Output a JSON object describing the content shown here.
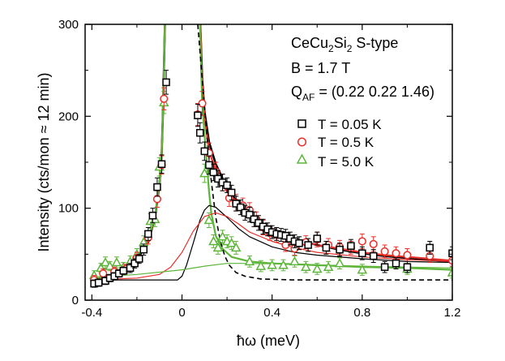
{
  "chart_data": {
    "type": "scatter",
    "xlabel": "ħω (meV)",
    "ylabel": "Intensity (cts/mon ≈ 12 min)",
    "xlim": [
      -0.43,
      1.2
    ],
    "ylim": [
      0,
      300
    ],
    "xticks": [
      -0.4,
      0,
      0.4,
      0.8,
      1.2
    ],
    "xtick_labels": [
      "-0.4",
      "0",
      "0.4",
      "0.8",
      "1.2"
    ],
    "yticks": [
      0,
      100,
      200,
      300
    ],
    "ytick_labels": [
      "0",
      "100",
      "200",
      "300"
    ],
    "annotation": {
      "line1_main": "CeCu",
      "line1_sub1": "2",
      "line1_mid": "Si",
      "line1_sub2": "2",
      "line1_tail": " S-type",
      "line2": "B = 1.7 T",
      "line3_main": "Q",
      "line3_sub": "AF",
      "line3_tail": " = (0.22 0.22 1.46)"
    },
    "series": [
      {
        "name": "T = 0.05 K",
        "marker": "square",
        "color": "#000000",
        "points": [
          [
            -0.39,
            18,
            4
          ],
          [
            -0.37,
            19,
            4
          ],
          [
            -0.34,
            21,
            4
          ],
          [
            -0.32,
            24,
            4
          ],
          [
            -0.3,
            26,
            4
          ],
          [
            -0.28,
            29,
            4
          ],
          [
            -0.26,
            32,
            4
          ],
          [
            -0.23,
            35,
            5
          ],
          [
            -0.21,
            40,
            5
          ],
          [
            -0.19,
            45,
            5
          ],
          [
            -0.17,
            55,
            6
          ],
          [
            -0.15,
            72,
            7
          ],
          [
            -0.13,
            92,
            8
          ],
          [
            -0.11,
            123,
            10
          ],
          [
            -0.09,
            148,
            10
          ],
          [
            -0.07,
            237,
            13
          ],
          [
            0.07,
            201,
            12
          ],
          [
            0.08,
            182,
            11
          ],
          [
            0.1,
            162,
            10
          ],
          [
            0.12,
            147,
            10
          ],
          [
            0.14,
            139,
            9
          ],
          [
            0.16,
            132,
            9
          ],
          [
            0.18,
            128,
            9
          ],
          [
            0.2,
            125,
            8
          ],
          [
            0.22,
            117,
            8
          ],
          [
            0.24,
            105,
            8
          ],
          [
            0.26,
            101,
            8
          ],
          [
            0.28,
            95,
            8
          ],
          [
            0.3,
            93,
            8
          ],
          [
            0.32,
            88,
            8
          ],
          [
            0.34,
            84,
            8
          ],
          [
            0.36,
            80,
            8
          ],
          [
            0.38,
            77,
            7
          ],
          [
            0.4,
            74,
            7
          ],
          [
            0.42,
            72,
            7
          ],
          [
            0.44,
            71,
            7
          ],
          [
            0.46,
            70,
            7
          ],
          [
            0.48,
            67,
            7
          ],
          [
            0.5,
            64,
            7
          ],
          [
            0.52,
            62,
            7
          ],
          [
            0.56,
            60,
            7
          ],
          [
            0.6,
            67,
            7
          ],
          [
            0.64,
            57,
            7
          ],
          [
            0.7,
            55,
            7
          ],
          [
            0.75,
            59,
            7
          ],
          [
            0.8,
            51,
            7
          ],
          [
            0.85,
            48,
            7
          ],
          [
            0.9,
            36,
            6
          ],
          [
            0.95,
            40,
            6
          ],
          [
            1.0,
            36,
            6
          ],
          [
            1.1,
            57,
            7
          ],
          [
            1.2,
            51,
            7
          ]
        ]
      },
      {
        "name": "T = 0.5 K",
        "marker": "circle",
        "color": "#e8302a",
        "points": [
          [
            -0.39,
            22,
            5
          ],
          [
            -0.35,
            29,
            5
          ],
          [
            -0.3,
            31,
            5
          ],
          [
            -0.25,
            34,
            5
          ],
          [
            -0.2,
            46,
            6
          ],
          [
            -0.15,
            68,
            7
          ],
          [
            -0.11,
            110,
            9
          ],
          [
            -0.09,
            147,
            10
          ],
          [
            -0.08,
            219,
            12
          ],
          [
            0.07,
            202,
            12
          ],
          [
            0.09,
            214,
            13
          ],
          [
            0.12,
            160,
            11
          ],
          [
            0.15,
            140,
            10
          ],
          [
            0.18,
            128,
            9
          ],
          [
            0.21,
            111,
            9
          ],
          [
            0.24,
            106,
            9
          ],
          [
            0.27,
            103,
            8
          ],
          [
            0.3,
            98,
            8
          ],
          [
            0.33,
            88,
            8
          ],
          [
            0.36,
            79,
            8
          ],
          [
            0.39,
            73,
            8
          ],
          [
            0.42,
            71,
            8
          ],
          [
            0.46,
            60,
            7
          ],
          [
            0.5,
            56,
            7
          ],
          [
            0.55,
            63,
            7
          ],
          [
            0.6,
            66,
            8
          ],
          [
            0.65,
            60,
            7
          ],
          [
            0.7,
            58,
            7
          ],
          [
            0.75,
            57,
            7
          ],
          [
            0.8,
            64,
            8
          ],
          [
            0.85,
            61,
            8
          ],
          [
            0.9,
            53,
            7
          ],
          [
            0.95,
            51,
            7
          ],
          [
            1.0,
            49,
            7
          ],
          [
            1.1,
            48,
            7
          ],
          [
            1.2,
            43,
            6
          ]
        ]
      },
      {
        "name": "T = 5.0 K",
        "marker": "triangle",
        "color": "#5db53a",
        "points": [
          [
            -0.39,
            27,
            5
          ],
          [
            -0.36,
            35,
            5
          ],
          [
            -0.34,
            41,
            6
          ],
          [
            -0.32,
            37,
            5
          ],
          [
            -0.29,
            41,
            6
          ],
          [
            -0.26,
            36,
            5
          ],
          [
            -0.23,
            42,
            6
          ],
          [
            -0.2,
            50,
            6
          ],
          [
            -0.17,
            63,
            7
          ],
          [
            -0.14,
            86,
            8
          ],
          [
            -0.12,
            88,
            8
          ],
          [
            -0.1,
            145,
            10
          ],
          [
            -0.08,
            215,
            12
          ],
          [
            0.1,
            138,
            10
          ],
          [
            0.12,
            87,
            8
          ],
          [
            0.14,
            64,
            7
          ],
          [
            0.16,
            57,
            7
          ],
          [
            0.18,
            69,
            7
          ],
          [
            0.2,
            64,
            7
          ],
          [
            0.22,
            62,
            7
          ],
          [
            0.24,
            57,
            7
          ],
          [
            0.3,
            42,
            6
          ],
          [
            0.35,
            37,
            6
          ],
          [
            0.4,
            38,
            6
          ],
          [
            0.45,
            38,
            6
          ],
          [
            0.5,
            42,
            6
          ],
          [
            0.55,
            36,
            6
          ],
          [
            0.6,
            34,
            6
          ],
          [
            0.65,
            36,
            6
          ],
          [
            0.7,
            40,
            6
          ],
          [
            0.8,
            33,
            6
          ],
          [
            1.0,
            34,
            6
          ],
          [
            1.2,
            30,
            6
          ]
        ]
      }
    ],
    "fit_lines": [
      {
        "name": "fit-0.05K-total",
        "color": "#000000",
        "width": 2.6,
        "dash": "",
        "points": [
          [
            -0.4,
            19
          ],
          [
            -0.3,
            24
          ],
          [
            -0.25,
            31
          ],
          [
            -0.2,
            44
          ],
          [
            -0.15,
            63
          ],
          [
            -0.12,
            90
          ],
          [
            -0.1,
            125
          ],
          [
            -0.09,
            160
          ],
          [
            -0.085,
            200
          ],
          [
            -0.08,
            255
          ],
          [
            -0.075,
            310
          ],
          [
            0.08,
            310
          ],
          [
            0.09,
            240
          ],
          [
            0.1,
            205
          ],
          [
            0.12,
            172
          ],
          [
            0.15,
            148
          ],
          [
            0.2,
            122
          ],
          [
            0.25,
            105
          ],
          [
            0.3,
            93
          ],
          [
            0.35,
            84
          ],
          [
            0.4,
            76
          ],
          [
            0.5,
            66
          ],
          [
            0.6,
            60
          ],
          [
            0.7,
            55
          ],
          [
            0.8,
            51
          ],
          [
            0.9,
            48
          ],
          [
            1.0,
            46
          ],
          [
            1.1,
            44
          ],
          [
            1.2,
            42
          ]
        ]
      },
      {
        "name": "fit-0.5K-total",
        "color": "#e8302a",
        "width": 2.2,
        "dash": "",
        "points": [
          [
            -0.4,
            20
          ],
          [
            -0.3,
            25
          ],
          [
            -0.25,
            32
          ],
          [
            -0.2,
            45
          ],
          [
            -0.15,
            64
          ],
          [
            -0.12,
            91
          ],
          [
            -0.1,
            126
          ],
          [
            -0.09,
            161
          ],
          [
            -0.085,
            201
          ],
          [
            -0.08,
            256
          ],
          [
            -0.075,
            310
          ],
          [
            0.08,
            310
          ],
          [
            0.09,
            238
          ],
          [
            0.1,
            200
          ],
          [
            0.12,
            163
          ],
          [
            0.15,
            140
          ],
          [
            0.2,
            118
          ],
          [
            0.25,
            104
          ],
          [
            0.3,
            92
          ],
          [
            0.35,
            83
          ],
          [
            0.4,
            76
          ],
          [
            0.5,
            66
          ],
          [
            0.6,
            60
          ],
          [
            0.7,
            56
          ],
          [
            0.8,
            52
          ],
          [
            0.9,
            49
          ],
          [
            1.0,
            47
          ],
          [
            1.1,
            45
          ],
          [
            1.2,
            43
          ]
        ]
      },
      {
        "name": "fit-5K-total",
        "color": "#5db53a",
        "width": 2.2,
        "dash": "",
        "points": [
          [
            -0.4,
            22
          ],
          [
            -0.3,
            28
          ],
          [
            -0.25,
            34
          ],
          [
            -0.2,
            46
          ],
          [
            -0.15,
            66
          ],
          [
            -0.12,
            92
          ],
          [
            -0.1,
            126
          ],
          [
            -0.09,
            160
          ],
          [
            -0.085,
            200
          ],
          [
            -0.08,
            255
          ],
          [
            -0.075,
            310
          ],
          [
            0.08,
            310
          ],
          [
            0.085,
            250
          ],
          [
            0.09,
            215
          ],
          [
            0.1,
            180
          ],
          [
            0.11,
            150
          ],
          [
            0.12,
            118
          ],
          [
            0.13,
            95
          ],
          [
            0.15,
            70
          ],
          [
            0.18,
            56
          ],
          [
            0.22,
            47
          ],
          [
            0.3,
            42
          ],
          [
            0.4,
            40
          ],
          [
            0.6,
            38
          ],
          [
            0.8,
            36
          ],
          [
            1.0,
            35
          ],
          [
            1.2,
            33
          ]
        ]
      },
      {
        "name": "quasielastic-0.05K",
        "color": "#000000",
        "width": 1.6,
        "dash": "6,4",
        "points": [
          [
            0.07,
            300
          ],
          [
            0.09,
            240
          ],
          [
            0.11,
            180
          ],
          [
            0.13,
            130
          ],
          [
            0.15,
            90
          ],
          [
            0.17,
            65
          ],
          [
            0.19,
            48
          ],
          [
            0.21,
            38
          ],
          [
            0.24,
            30
          ],
          [
            0.28,
            26
          ],
          [
            0.35,
            23
          ],
          [
            0.5,
            22
          ],
          [
            0.8,
            22
          ],
          [
            1.2,
            22
          ]
        ]
      },
      {
        "name": "inelastic-0.05K",
        "color": "#000000",
        "width": 1.2,
        "dash": "",
        "points": [
          [
            -0.4,
            22
          ],
          [
            -0.1,
            22
          ],
          [
            -0.02,
            22
          ],
          [
            0.0,
            26
          ],
          [
            0.02,
            38
          ],
          [
            0.05,
            62
          ],
          [
            0.08,
            87
          ],
          [
            0.1,
            98
          ],
          [
            0.12,
            103
          ],
          [
            0.15,
            101
          ],
          [
            0.2,
            90
          ],
          [
            0.25,
            78
          ],
          [
            0.3,
            69
          ],
          [
            0.4,
            58
          ],
          [
            0.5,
            52
          ],
          [
            0.6,
            49
          ],
          [
            0.8,
            45
          ],
          [
            1.0,
            42
          ],
          [
            1.2,
            41
          ]
        ]
      },
      {
        "name": "inelastic-0.5K",
        "color": "#e8302a",
        "width": 1.2,
        "dash": "",
        "points": [
          [
            -0.4,
            22
          ],
          [
            -0.2,
            24
          ],
          [
            -0.1,
            28
          ],
          [
            -0.05,
            36
          ],
          [
            0.0,
            52
          ],
          [
            0.05,
            75
          ],
          [
            0.1,
            91
          ],
          [
            0.15,
            95
          ],
          [
            0.2,
            91
          ],
          [
            0.25,
            83
          ],
          [
            0.3,
            74
          ],
          [
            0.4,
            64
          ],
          [
            0.5,
            57
          ],
          [
            0.6,
            52
          ],
          [
            0.8,
            47
          ],
          [
            1.0,
            44
          ],
          [
            1.2,
            42
          ]
        ]
      },
      {
        "name": "inelastic-5K",
        "color": "#5db53a",
        "width": 1.2,
        "dash": "",
        "points": [
          [
            -0.4,
            25
          ],
          [
            -0.2,
            28
          ],
          [
            0.0,
            33
          ],
          [
            0.1,
            37
          ],
          [
            0.2,
            40
          ],
          [
            0.3,
            40
          ],
          [
            0.5,
            39
          ],
          [
            0.8,
            37
          ],
          [
            1.0,
            36
          ],
          [
            1.2,
            35
          ]
        ]
      }
    ]
  }
}
